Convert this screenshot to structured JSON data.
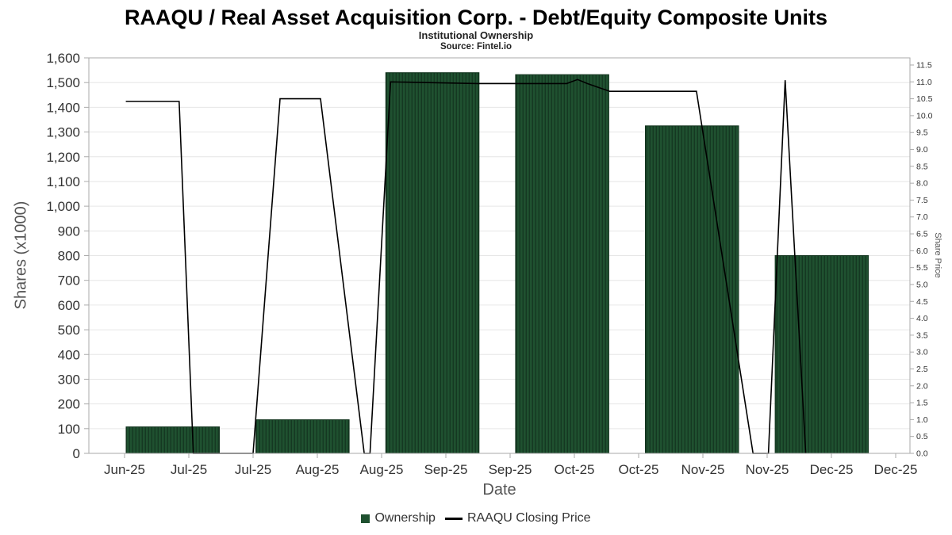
{
  "header": {
    "title": "RAAQU / Real Asset Acquisition Corp. - Debt/Equity Composite Units",
    "subtitle": "Institutional Ownership",
    "source": "Source: Fintel.io"
  },
  "axes": {
    "x_label": "Date",
    "left_label": "Shares (x1000)",
    "right_label": "Share Price"
  },
  "legend": {
    "ownership_label": "Ownership",
    "price_label": "RAAQU Closing Price"
  },
  "colors": {
    "bar_fill": "#1f5130",
    "bar_hatch": "#153822",
    "bar_stroke": "#11331d",
    "line": "#000000",
    "grid": "#e6e6e6",
    "axis": "#aaaaaa",
    "tick_text": "#333333"
  },
  "chart_data": {
    "type": "bar",
    "title": "RAAQU / Real Asset Acquisition Corp. - Debt/Equity Composite Units",
    "subtitle": "Institutional Ownership",
    "xlabel": "Date",
    "x_ticks": [
      "Jun-25",
      "Jul-25",
      "Jul-25",
      "Aug-25",
      "Aug-25",
      "Sep-25",
      "Sep-25",
      "Oct-25",
      "Oct-25",
      "Nov-25",
      "Nov-25",
      "Dec-25",
      "Dec-25"
    ],
    "left_axis": {
      "label": "Shares (x1000)",
      "min": 0,
      "max": 1600,
      "tick_step": 100
    },
    "right_axis": {
      "label": "Share Price",
      "min": 0,
      "max": 11.5,
      "tick_step": 0.5
    },
    "grid": "horizontal",
    "legend_position": "bottom",
    "series": [
      {
        "name": "Ownership",
        "type": "bar",
        "axis": "left",
        "bar_width_ticks": 1.45,
        "points": [
          {
            "x": 0.75,
            "value": 107
          },
          {
            "x": 2.77,
            "value": 136
          },
          {
            "x": 4.79,
            "value": 1540
          },
          {
            "x": 6.81,
            "value": 1532
          },
          {
            "x": 8.83,
            "value": 1325
          },
          {
            "x": 10.85,
            "value": 800
          }
        ]
      },
      {
        "name": "RAAQU Closing Price",
        "type": "line",
        "axis": "right",
        "points": [
          [
            0.02,
            10.42
          ],
          [
            0.85,
            10.42
          ],
          [
            1.07,
            0
          ],
          [
            2.0,
            0
          ],
          [
            2.42,
            10.5
          ],
          [
            3.05,
            10.5
          ],
          [
            3.73,
            0
          ],
          [
            3.82,
            0
          ],
          [
            4.14,
            11.0
          ],
          [
            5.5,
            10.95
          ],
          [
            6.88,
            10.95
          ],
          [
            7.05,
            11.07
          ],
          [
            7.2,
            10.95
          ],
          [
            7.55,
            10.72
          ],
          [
            8.9,
            10.72
          ],
          [
            9.78,
            0
          ],
          [
            10.02,
            0
          ],
          [
            10.28,
            11.05
          ],
          [
            10.6,
            0
          ]
        ]
      }
    ]
  }
}
